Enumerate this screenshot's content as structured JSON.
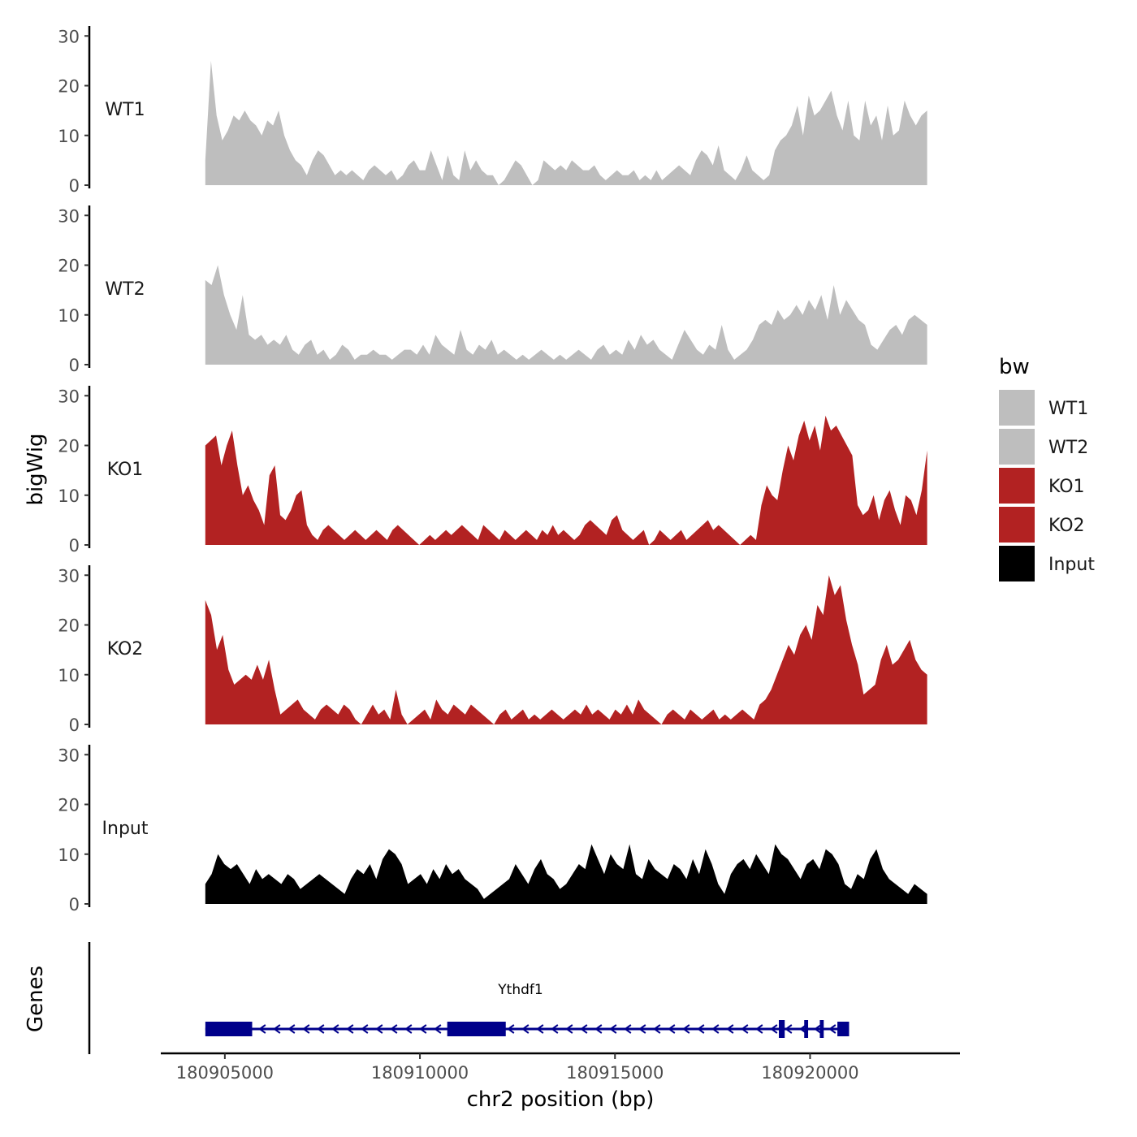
{
  "chart_data": {
    "type": "area",
    "title": "",
    "xlabel": "chr2 position (bp)",
    "ylabel": "bigWig",
    "genes_label": "Genes",
    "xlim": [
      180903400,
      180923800
    ],
    "ylim": [
      0,
      32
    ],
    "y_ticks": [
      0,
      10,
      20,
      30
    ],
    "x_ticks": [
      180905000,
      180910000,
      180915000,
      180920000
    ],
    "x_tick_labels": [
      "180905000",
      "180910000",
      "180915000",
      "180920000"
    ],
    "legend": {
      "title": "bw",
      "position": "right",
      "entries": [
        {
          "label": "WT1",
          "color": "#bebebe"
        },
        {
          "label": "WT2",
          "color": "#bebebe"
        },
        {
          "label": "KO1",
          "color": "#b22222"
        },
        {
          "label": "KO2",
          "color": "#b22222"
        },
        {
          "label": "Input",
          "color": "#000000"
        }
      ]
    },
    "series": [
      {
        "name": "WT1",
        "color": "#bebebe",
        "x_start": 180904500,
        "x_end": 180923000,
        "values": [
          5,
          25,
          14,
          9,
          11,
          14,
          13,
          15,
          13,
          12,
          10,
          13,
          12,
          15,
          10,
          7,
          5,
          4,
          2,
          5,
          7,
          6,
          4,
          2,
          3,
          2,
          3,
          2,
          1,
          3,
          4,
          3,
          2,
          3,
          1,
          2,
          4,
          5,
          3,
          3,
          7,
          4,
          1,
          6,
          2,
          1,
          7,
          3,
          5,
          3,
          2,
          2,
          0,
          1,
          3,
          5,
          4,
          2,
          0,
          1,
          5,
          4,
          3,
          4,
          3,
          5,
          4,
          3,
          3,
          4,
          2,
          1,
          2,
          3,
          2,
          2,
          3,
          1,
          2,
          1,
          3,
          1,
          2,
          3,
          4,
          3,
          2,
          5,
          7,
          6,
          4,
          8,
          3,
          2,
          1,
          3,
          6,
          3,
          2,
          1,
          2,
          7,
          9,
          10,
          12,
          16,
          10,
          18,
          14,
          15,
          17,
          19,
          14,
          11,
          17,
          10,
          9,
          17,
          12,
          14,
          9,
          16,
          10,
          11,
          17,
          14,
          12,
          14,
          15
        ]
      },
      {
        "name": "WT2",
        "color": "#bebebe",
        "x_start": 180904500,
        "x_end": 180923000,
        "values": [
          17,
          16,
          20,
          14,
          10,
          7,
          14,
          6,
          5,
          6,
          4,
          5,
          4,
          6,
          3,
          2,
          4,
          5,
          2,
          3,
          1,
          2,
          4,
          3,
          1,
          2,
          2,
          3,
          2,
          2,
          1,
          2,
          3,
          3,
          2,
          4,
          2,
          6,
          4,
          3,
          2,
          7,
          3,
          2,
          4,
          3,
          5,
          2,
          3,
          2,
          1,
          2,
          1,
          2,
          3,
          2,
          1,
          2,
          1,
          2,
          3,
          2,
          1,
          3,
          4,
          2,
          3,
          2,
          5,
          3,
          6,
          4,
          5,
          3,
          2,
          1,
          4,
          7,
          5,
          3,
          2,
          4,
          3,
          8,
          3,
          1,
          2,
          3,
          5,
          8,
          9,
          8,
          11,
          9,
          10,
          12,
          10,
          13,
          11,
          14,
          9,
          16,
          10,
          13,
          11,
          9,
          8,
          4,
          3,
          5,
          7,
          8,
          6,
          9,
          10,
          9,
          8
        ]
      },
      {
        "name": "KO1",
        "color": "#b22222",
        "x_start": 180904500,
        "x_end": 180923000,
        "values": [
          20,
          21,
          22,
          16,
          20,
          23,
          16,
          10,
          12,
          9,
          7,
          4,
          14,
          16,
          6,
          5,
          7,
          10,
          11,
          4,
          2,
          1,
          3,
          4,
          3,
          2,
          1,
          2,
          3,
          2,
          1,
          2,
          3,
          2,
          1,
          3,
          4,
          3,
          2,
          1,
          0,
          1,
          2,
          1,
          2,
          3,
          2,
          3,
          4,
          3,
          2,
          1,
          4,
          3,
          2,
          1,
          3,
          2,
          1,
          2,
          3,
          2,
          1,
          3,
          2,
          4,
          2,
          3,
          2,
          1,
          2,
          4,
          5,
          4,
          3,
          2,
          5,
          6,
          3,
          2,
          1,
          2,
          3,
          0,
          1,
          3,
          2,
          1,
          2,
          3,
          1,
          2,
          3,
          4,
          5,
          3,
          4,
          3,
          2,
          1,
          0,
          1,
          2,
          1,
          8,
          12,
          10,
          9,
          15,
          20,
          17,
          22,
          25,
          21,
          24,
          19,
          26,
          23,
          24,
          22,
          20,
          18,
          8,
          6,
          7,
          10,
          5,
          9,
          11,
          7,
          4,
          10,
          9,
          6,
          11,
          19
        ]
      },
      {
        "name": "KO2",
        "color": "#b22222",
        "x_start": 180904500,
        "x_end": 180923000,
        "values": [
          25,
          22,
          15,
          18,
          11,
          8,
          9,
          10,
          9,
          12,
          9,
          13,
          7,
          2,
          3,
          4,
          5,
          3,
          2,
          1,
          3,
          4,
          3,
          2,
          4,
          3,
          1,
          0,
          2,
          4,
          2,
          3,
          1,
          7,
          2,
          0,
          1,
          2,
          3,
          1,
          5,
          3,
          2,
          4,
          3,
          2,
          4,
          3,
          2,
          1,
          0,
          2,
          3,
          1,
          2,
          3,
          1,
          2,
          1,
          2,
          3,
          2,
          1,
          2,
          3,
          2,
          4,
          2,
          3,
          2,
          1,
          3,
          2,
          4,
          2,
          5,
          3,
          2,
          1,
          0,
          2,
          3,
          2,
          1,
          3,
          2,
          1,
          2,
          3,
          1,
          2,
          1,
          2,
          3,
          2,
          1,
          4,
          5,
          7,
          10,
          13,
          16,
          14,
          18,
          20,
          17,
          24,
          22,
          30,
          26,
          28,
          21,
          16,
          12,
          6,
          7,
          8,
          13,
          16,
          12,
          13,
          15,
          17,
          13,
          11,
          10
        ]
      },
      {
        "name": "Input",
        "color": "#000000",
        "x_start": 180904500,
        "x_end": 180923000,
        "values": [
          4,
          6,
          10,
          8,
          7,
          8,
          6,
          4,
          7,
          5,
          6,
          5,
          4,
          6,
          5,
          3,
          4,
          5,
          6,
          5,
          4,
          3,
          2,
          5,
          7,
          6,
          8,
          5,
          9,
          11,
          10,
          8,
          4,
          5,
          6,
          4,
          7,
          5,
          8,
          6,
          7,
          5,
          4,
          3,
          1,
          2,
          3,
          4,
          5,
          8,
          6,
          4,
          7,
          9,
          6,
          5,
          3,
          4,
          6,
          8,
          7,
          12,
          9,
          6,
          10,
          8,
          7,
          12,
          6,
          5,
          9,
          7,
          6,
          5,
          8,
          7,
          5,
          9,
          6,
          11,
          8,
          4,
          2,
          6,
          8,
          9,
          7,
          10,
          8,
          6,
          12,
          10,
          9,
          7,
          5,
          8,
          9,
          7,
          11,
          10,
          8,
          4,
          3,
          6,
          5,
          9,
          11,
          7,
          5,
          4,
          3,
          2,
          4,
          3,
          2
        ]
      }
    ],
    "gene_track": {
      "gene_name": "Ythdf1",
      "strand": "-",
      "start": 180904500,
      "end": 180921000,
      "exons": [
        {
          "start": 180904500,
          "end": 180905700,
          "type": "utr"
        },
        {
          "start": 180910700,
          "end": 180912200,
          "type": "utr"
        },
        {
          "start": 180919200,
          "end": 180919350,
          "type": "cds"
        },
        {
          "start": 180919850,
          "end": 180919950,
          "type": "cds"
        },
        {
          "start": 180920250,
          "end": 180920350,
          "type": "cds"
        },
        {
          "start": 180920700,
          "end": 180921000,
          "type": "utr"
        }
      ],
      "color": "#00008b"
    }
  }
}
